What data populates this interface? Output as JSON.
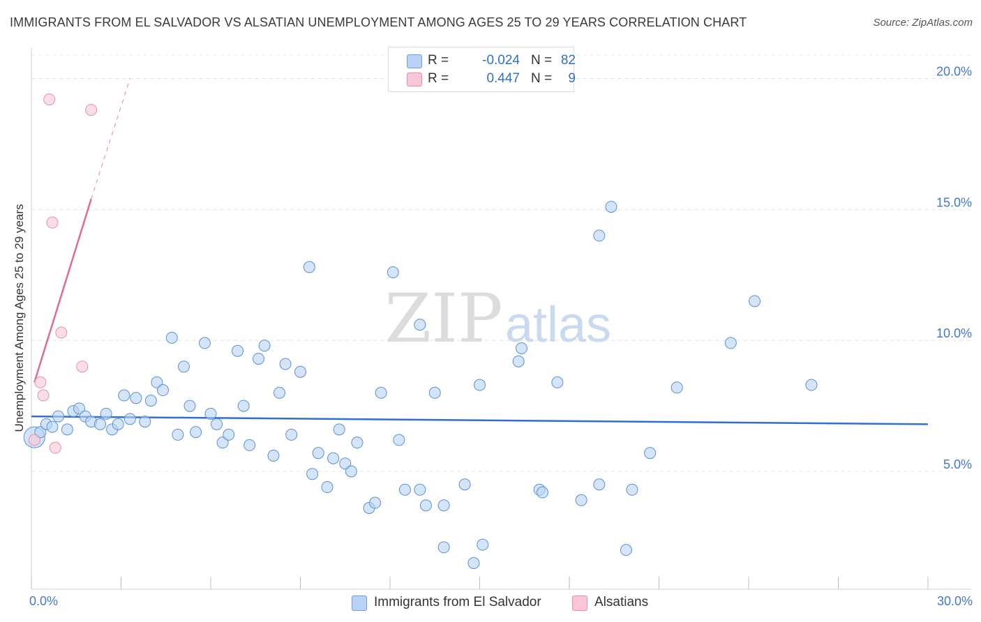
{
  "title": "IMMIGRANTS FROM EL SALVADOR VS ALSATIAN UNEMPLOYMENT AMONG AGES 25 TO 29 YEARS CORRELATION CHART",
  "source": "Source: ZipAtlas.com",
  "watermark": {
    "zip": "ZIP",
    "atlas": "atlas"
  },
  "legend_top": [
    {
      "r_label": "R =",
      "r_value": "-0.024",
      "n_label": "N =",
      "n_value": "82",
      "swatch_fill": "#b8d3f5",
      "swatch_stroke": "#6a9ee0"
    },
    {
      "r_label": "R =",
      "r_value": "0.447",
      "n_label": "N =",
      "n_value": "9",
      "swatch_fill": "#f8c6d6",
      "swatch_stroke": "#e58fab"
    }
  ],
  "legend_bottom": [
    {
      "label": "Immigrants from El Salvador",
      "swatch_fill": "#b8d3f5",
      "swatch_stroke": "#6a9ee0"
    },
    {
      "label": "Alsatians",
      "swatch_fill": "#f8c6d6",
      "swatch_stroke": "#e58fab"
    }
  ],
  "chart_data": {
    "type": "scatter",
    "title": "IMMIGRANTS FROM EL SALVADOR VS ALSATIAN UNEMPLOYMENT AMONG AGES 25 TO 29 YEARS CORRELATION CHART",
    "xlabel": "",
    "ylabel": "Unemployment Among Ages 25 to 29 years",
    "xlim": [
      0,
      30
    ],
    "ylim": [
      0.5,
      21.0
    ],
    "x_tick_labels": {
      "min": "0.0%",
      "max": "30.0%"
    },
    "x_tick_values": [
      0,
      3,
      6,
      9,
      12,
      15,
      18,
      21,
      24,
      27,
      30
    ],
    "y_ticks": [
      {
        "value": 5,
        "label": "5.0%"
      },
      {
        "value": 10,
        "label": "10.0%"
      },
      {
        "value": 15,
        "label": "15.0%"
      },
      {
        "value": 20,
        "label": "20.0%"
      }
    ],
    "grid": true,
    "series": [
      {
        "name": "Immigrants from El Salvador",
        "color": "#5b8fd6",
        "fill": "#b8d3f5",
        "trend": {
          "x": [
            0,
            30
          ],
          "y": [
            7.1,
            6.8
          ],
          "color": "#2f6fd0"
        },
        "points": [
          [
            0.1,
            6.3
          ],
          [
            0.3,
            6.5
          ],
          [
            0.5,
            6.8
          ],
          [
            0.7,
            6.7
          ],
          [
            0.9,
            7.1
          ],
          [
            1.2,
            6.6
          ],
          [
            1.4,
            7.3
          ],
          [
            1.6,
            7.4
          ],
          [
            1.8,
            7.1
          ],
          [
            2.0,
            6.9
          ],
          [
            2.3,
            6.8
          ],
          [
            2.5,
            7.2
          ],
          [
            2.7,
            6.6
          ],
          [
            2.9,
            6.8
          ],
          [
            3.1,
            7.9
          ],
          [
            3.3,
            7.0
          ],
          [
            3.5,
            7.8
          ],
          [
            3.8,
            6.9
          ],
          [
            4.0,
            7.7
          ],
          [
            4.2,
            8.4
          ],
          [
            4.4,
            8.1
          ],
          [
            4.7,
            10.1
          ],
          [
            4.9,
            6.4
          ],
          [
            5.1,
            9.0
          ],
          [
            5.3,
            7.5
          ],
          [
            5.5,
            6.5
          ],
          [
            5.8,
            9.9
          ],
          [
            6.0,
            7.2
          ],
          [
            6.2,
            6.8
          ],
          [
            6.4,
            6.1
          ],
          [
            6.6,
            6.4
          ],
          [
            6.9,
            9.6
          ],
          [
            7.1,
            7.5
          ],
          [
            7.3,
            6.0
          ],
          [
            7.6,
            9.3
          ],
          [
            7.8,
            9.8
          ],
          [
            8.1,
            5.6
          ],
          [
            8.3,
            8.0
          ],
          [
            8.5,
            9.1
          ],
          [
            8.7,
            6.4
          ],
          [
            9.0,
            8.8
          ],
          [
            9.3,
            12.8
          ],
          [
            9.4,
            4.9
          ],
          [
            9.6,
            5.7
          ],
          [
            9.9,
            4.4
          ],
          [
            10.1,
            5.5
          ],
          [
            10.3,
            6.6
          ],
          [
            10.5,
            5.3
          ],
          [
            10.7,
            5.0
          ],
          [
            10.9,
            6.1
          ],
          [
            11.3,
            3.6
          ],
          [
            11.5,
            3.8
          ],
          [
            11.7,
            8.0
          ],
          [
            12.1,
            12.6
          ],
          [
            12.3,
            6.2
          ],
          [
            12.5,
            4.3
          ],
          [
            13.0,
            10.6
          ],
          [
            13.0,
            4.3
          ],
          [
            13.2,
            3.7
          ],
          [
            13.5,
            8.0
          ],
          [
            13.8,
            3.7
          ],
          [
            13.8,
            2.1
          ],
          [
            14.5,
            4.5
          ],
          [
            14.8,
            1.5
          ],
          [
            15.0,
            8.3
          ],
          [
            15.1,
            2.2
          ],
          [
            16.3,
            9.2
          ],
          [
            16.4,
            9.7
          ],
          [
            17.0,
            4.3
          ],
          [
            17.1,
            4.2
          ],
          [
            17.6,
            8.4
          ],
          [
            18.4,
            3.9
          ],
          [
            19.0,
            14.0
          ],
          [
            19.0,
            4.5
          ],
          [
            19.4,
            15.1
          ],
          [
            19.9,
            2.0
          ],
          [
            20.1,
            4.3
          ],
          [
            20.7,
            5.7
          ],
          [
            21.6,
            8.2
          ],
          [
            23.4,
            9.9
          ],
          [
            24.2,
            11.5
          ],
          [
            26.1,
            8.3
          ]
        ]
      },
      {
        "name": "Alsatians",
        "color": "#e58fab",
        "fill": "#f8c6d6",
        "trend": {
          "x": [
            0.1,
            2.0
          ],
          "y": [
            8.4,
            15.4
          ],
          "dash_to": [
            3.3,
            20.0
          ],
          "color": "#e06b93"
        },
        "points": [
          [
            0.1,
            6.2
          ],
          [
            0.3,
            8.4
          ],
          [
            0.4,
            7.9
          ],
          [
            0.6,
            19.2
          ],
          [
            0.7,
            14.5
          ],
          [
            0.8,
            5.9
          ],
          [
            1.0,
            10.3
          ],
          [
            1.7,
            9.0
          ],
          [
            2.0,
            18.8
          ]
        ]
      }
    ]
  }
}
